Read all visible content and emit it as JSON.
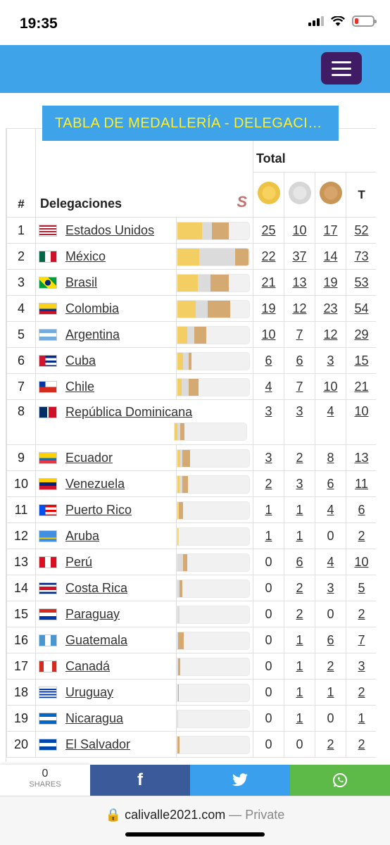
{
  "status": {
    "time": "19:35"
  },
  "header": {
    "menu_icon": "hamburger-icon"
  },
  "title": "TABLA DE MEDALLERÍA - DELEGACI…",
  "table": {
    "col_num": "#",
    "col_delegation": "Delegaciones",
    "col_total": "Total",
    "col_t": "T",
    "rows": [
      {
        "rank": "1",
        "name": "Estados Unidos",
        "gold": "25",
        "silver": "10",
        "bronze": "17",
        "total": "52"
      },
      {
        "rank": "2",
        "name": "México",
        "gold": "22",
        "silver": "37",
        "bronze": "14",
        "total": "73"
      },
      {
        "rank": "3",
        "name": "Brasil",
        "gold": "21",
        "silver": "13",
        "bronze": "19",
        "total": "53"
      },
      {
        "rank": "4",
        "name": "Colombia",
        "gold": "19",
        "silver": "12",
        "bronze": "23",
        "total": "54"
      },
      {
        "rank": "5",
        "name": "Argentina",
        "gold": "10",
        "silver": "7",
        "bronze": "12",
        "total": "29"
      },
      {
        "rank": "6",
        "name": "Cuba",
        "gold": "6",
        "silver": "6",
        "bronze": "3",
        "total": "15"
      },
      {
        "rank": "7",
        "name": "Chile",
        "gold": "4",
        "silver": "7",
        "bronze": "10",
        "total": "21"
      },
      {
        "rank": "8",
        "name": "República Dominicana",
        "gold": "3",
        "silver": "3",
        "bronze": "4",
        "total": "10"
      },
      {
        "rank": "9",
        "name": "Ecuador",
        "gold": "3",
        "silver": "2",
        "bronze": "8",
        "total": "13"
      },
      {
        "rank": "10",
        "name": "Venezuela",
        "gold": "2",
        "silver": "3",
        "bronze": "6",
        "total": "11"
      },
      {
        "rank": "11",
        "name": "Puerto Rico",
        "gold": "1",
        "silver": "1",
        "bronze": "4",
        "total": "6"
      },
      {
        "rank": "12",
        "name": "Aruba",
        "gold": "1",
        "silver": "1",
        "bronze": "0",
        "total": "2"
      },
      {
        "rank": "13",
        "name": "Perú",
        "gold": "0",
        "silver": "6",
        "bronze": "4",
        "total": "10"
      },
      {
        "rank": "14",
        "name": "Costa Rica",
        "gold": "0",
        "silver": "2",
        "bronze": "3",
        "total": "5"
      },
      {
        "rank": "15",
        "name": "Paraguay",
        "gold": "0",
        "silver": "2",
        "bronze": "0",
        "total": "2"
      },
      {
        "rank": "16",
        "name": "Guatemala",
        "gold": "0",
        "silver": "1",
        "bronze": "6",
        "total": "7"
      },
      {
        "rank": "17",
        "name": "Canadá",
        "gold": "0",
        "silver": "1",
        "bronze": "2",
        "total": "3"
      },
      {
        "rank": "18",
        "name": "Uruguay",
        "gold": "0",
        "silver": "1",
        "bronze": "1",
        "total": "2"
      },
      {
        "rank": "19",
        "name": "Nicaragua",
        "gold": "0",
        "silver": "1",
        "bronze": "0",
        "total": "1"
      },
      {
        "rank": "20",
        "name": "El Salvador",
        "gold": "0",
        "silver": "0",
        "bronze": "2",
        "total": "2"
      }
    ]
  },
  "share": {
    "count": "0",
    "label": "SHARES"
  },
  "browser": {
    "url": "calivalle2021.com",
    "privacy": "— Private"
  },
  "colors": {
    "header": "#3ea3e8",
    "title_text": "#ffef2e",
    "gold": "#f2ce63",
    "silver": "#dbdbdb",
    "bronze": "#d5aa72"
  }
}
